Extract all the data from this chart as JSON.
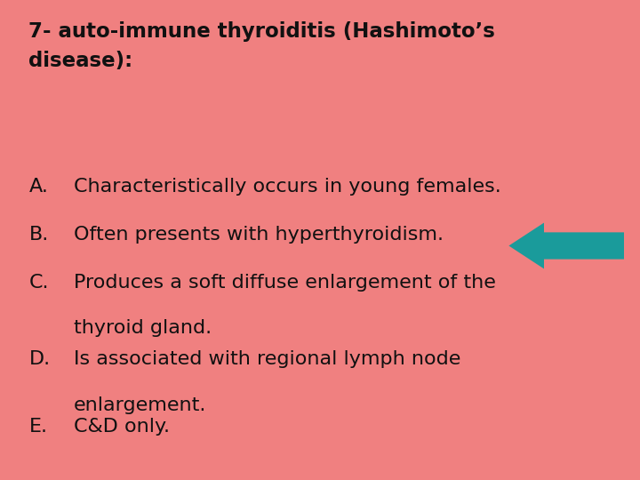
{
  "background_color": "#F08080",
  "title_line1": "7- auto-immune thyroiditis (Hashimoto’s",
  "title_line2": "disease):",
  "items": [
    {
      "label": "A.",
      "text": "Characteristically occurs in young females.",
      "continuation": "",
      "arrow": false
    },
    {
      "label": "B.",
      "text": "Often presents with hyperthyroidism.",
      "continuation": "",
      "arrow": true
    },
    {
      "label": "C.",
      "text": "Produces a soft diffuse enlargement of the",
      "continuation": "thyroid gland.",
      "arrow": false
    },
    {
      "label": "D.",
      "text": "Is associated with regional lymph node",
      "continuation": "enlargement.",
      "arrow": false
    },
    {
      "label": "E.",
      "text": "C&D only.",
      "continuation": "",
      "arrow": false
    }
  ],
  "text_color": "#111111",
  "arrow_color": "#1a9b9b",
  "font_size_title": 16.5,
  "font_size_body": 16,
  "font_family": "DejaVu Sans"
}
